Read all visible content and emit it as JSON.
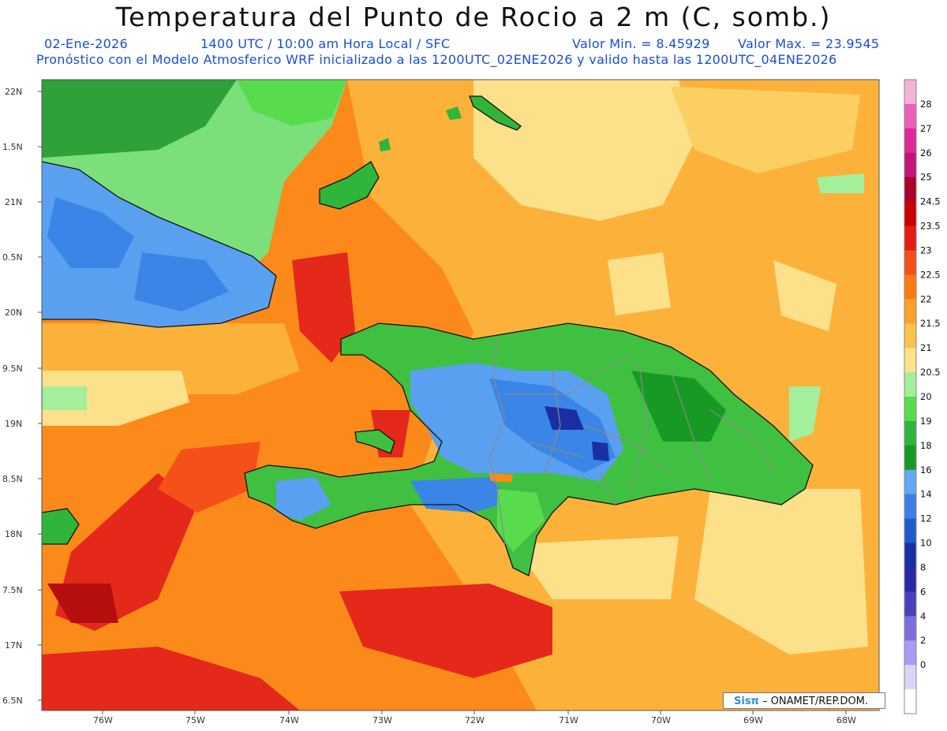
{
  "header": {
    "title": "Temperatura del Punto de Rocio a 2 m (C, somb.)",
    "date": "02-Ene-2026",
    "time": "1400 UTC / 10:00 am Hora Local / SFC",
    "min_value": "Valor Min. = 8.45929",
    "max_value": "Valor Max. = 23.9545",
    "model_info": "Pronóstico con el Modelo Atmosferico WRF inicializado a las 1200UTC_02ENE2026 y valido hasta las  1200UTC_04ENE2026"
  },
  "axes": {
    "lat_labels": [
      "22N",
      "1.5N",
      "21N",
      "0.5N",
      "20N",
      "9.5N",
      "19N",
      "8.5N",
      "18N",
      "7.5N",
      "17N",
      "6.5N"
    ],
    "lon_labels": [
      "76W",
      "75W",
      "74W",
      "73W",
      "72W",
      "71W",
      "70W",
      "69W",
      "68W"
    ]
  },
  "colorbar": {
    "labels": [
      "28",
      "27",
      "26",
      "25",
      "24.5",
      "23.5",
      "23",
      "22.5",
      "22",
      "21.5",
      "21",
      "20.5",
      "20",
      "19",
      "18",
      "16",
      "14",
      "12",
      "10",
      "8",
      "6",
      "4",
      "2",
      "0"
    ],
    "colors": [
      "#f5b2d8",
      "#ea5fb8",
      "#dd2a98",
      "#c2157a",
      "#a8002a",
      "#c90000",
      "#e41d10",
      "#f5501a",
      "#fb7a12",
      "#fca12a",
      "#fbc14d",
      "#fde389",
      "#a3ef9c",
      "#58dc4e",
      "#2fb53a",
      "#179a24",
      "#5fa9f2",
      "#3a80e6",
      "#1e5cc9",
      "#1a2fa2",
      "#2a2aa0",
      "#4a3fbb",
      "#7b6fe0",
      "#a99af5",
      "#d7d6f4",
      "#ffffff"
    ]
  },
  "credit": {
    "logo": "Sisπ",
    "text": "– ONAMET/REP.DOM."
  }
}
